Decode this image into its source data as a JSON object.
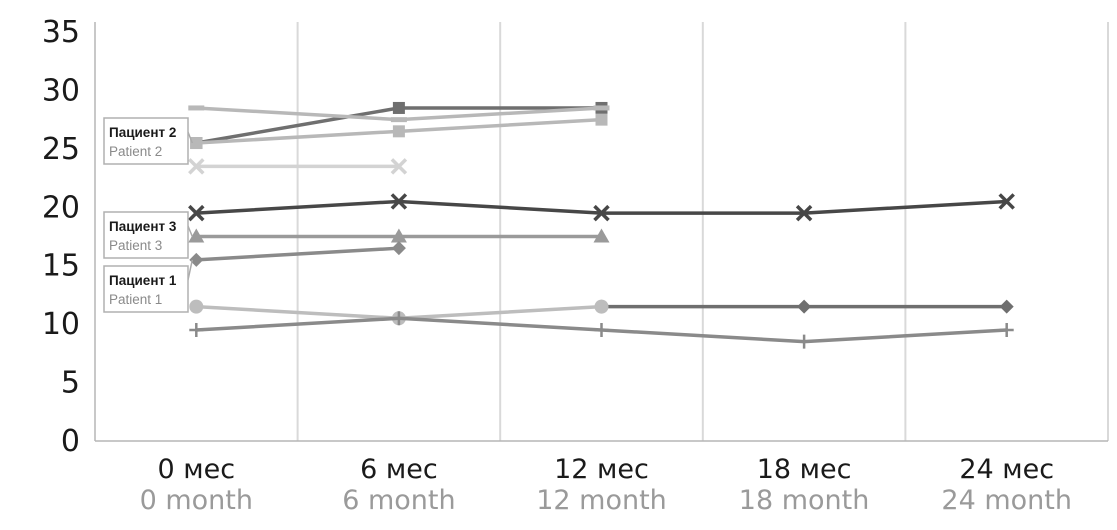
{
  "chart_data": {
    "type": "line",
    "title": "",
    "xlabel": "",
    "ylabel": "",
    "ylim": [
      0,
      35
    ],
    "yticks": [
      0,
      5,
      10,
      15,
      20,
      25,
      30,
      35
    ],
    "grid": "vertical",
    "categories": [
      {
        "ru": "0 мес",
        "en": "0 month"
      },
      {
        "ru": "6 мес",
        "en": "6 month"
      },
      {
        "ru": "12 мес",
        "en": "12 month"
      },
      {
        "ru": "18 мес",
        "en": "18 month"
      },
      {
        "ru": "24 мес",
        "en": "24 month"
      }
    ],
    "series": [
      {
        "marker": "x",
        "color": "#474747",
        "values": [
          19.5,
          20.5,
          19.5,
          19.5,
          20.5
        ]
      },
      {
        "marker": "square",
        "color": "#6f6f6f",
        "values": [
          25.5,
          28.5,
          28.5,
          null,
          null
        ]
      },
      {
        "marker": "dash",
        "color": "#b8b8b8",
        "values": [
          28.5,
          27.5,
          28.5,
          null,
          null
        ]
      },
      {
        "marker": "square",
        "color": "#b8b8b8",
        "values": [
          25.5,
          26.5,
          27.5,
          null,
          null
        ]
      },
      {
        "marker": "x",
        "color": "#d3d3d3",
        "values": [
          23.5,
          23.5,
          null,
          null,
          null
        ]
      },
      {
        "marker": "triangle",
        "color": "#9a9a9a",
        "values": [
          17.5,
          17.5,
          17.5,
          null,
          null
        ]
      },
      {
        "marker": "diamond",
        "color": "#8a8a8a",
        "values": [
          15.5,
          16.5,
          null,
          null,
          null
        ]
      },
      {
        "marker": "diamond",
        "color": "#6f6f6f",
        "values": [
          null,
          null,
          11.5,
          11.5,
          11.5
        ]
      },
      {
        "marker": "circle",
        "color": "#bdbdbd",
        "values": [
          11.5,
          10.5,
          11.5,
          null,
          null
        ]
      },
      {
        "marker": "plus",
        "color": "#8a8a8a",
        "values": [
          9.5,
          10.5,
          9.5,
          8.5,
          9.5
        ]
      }
    ],
    "annotations": [
      {
        "ru": "Пациент 2",
        "en": "Patient 2",
        "points_to": {
          "category": 0,
          "value": 25.5
        }
      },
      {
        "ru": "Пациент 3",
        "en": "Patient 3",
        "points_to": {
          "category": 0,
          "value": 17.5
        }
      },
      {
        "ru": "Пациент 1",
        "en": "Patient 1",
        "points_to": {
          "category": 0,
          "value": 15.5
        }
      }
    ]
  }
}
